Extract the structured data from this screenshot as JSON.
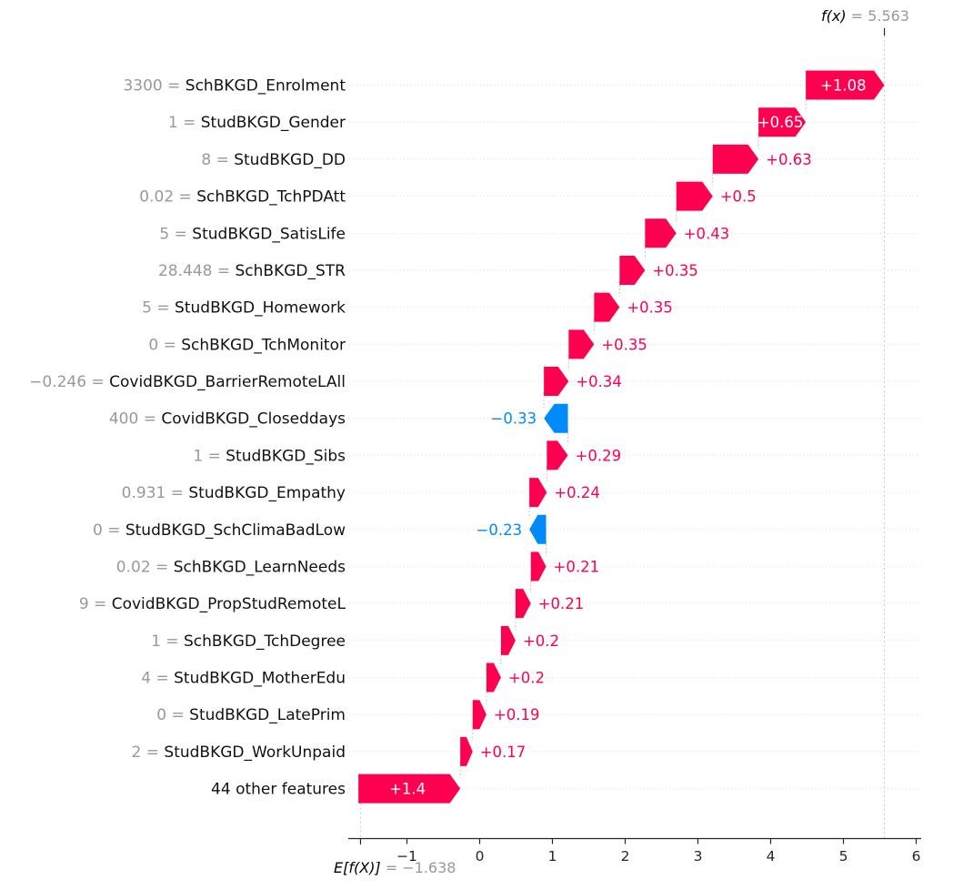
{
  "annotations": {
    "fx_name": "f(x)",
    "fx_eq": " = 5.563",
    "efx_name": "E[f(X)]",
    "efx_eq": " = −1.638"
  },
  "colors": {
    "positive": "#ff0051",
    "negative": "#008bfb",
    "inside_label": "#ffffff",
    "value_gray": "#999999",
    "feature_black": "#111111",
    "tick": "#262626",
    "gridline": "#dcdcdc",
    "connector": "#c0c0c0",
    "guide": "#cccccc"
  },
  "chart_data": {
    "type": "bar",
    "subtype": "shap-waterfall",
    "fx": 5.563,
    "base_value": -1.638,
    "xlim": [
      -1.79,
      6.05
    ],
    "x_ticks": [
      -1,
      0,
      1,
      2,
      3,
      4,
      5,
      6
    ],
    "x_tick_labels": [
      "−1",
      "0",
      "1",
      "2",
      "3",
      "4",
      "5",
      "6"
    ],
    "rows": [
      {
        "data_value": "3300",
        "feature": "SchBKGD_Enrolment",
        "shap": 1.08,
        "label": "+1.08",
        "start": 4.483,
        "end": 5.563,
        "inside": true
      },
      {
        "data_value": "1",
        "feature": "StudBKGD_Gender",
        "shap": 0.65,
        "label": "+0.65",
        "start": 3.833,
        "end": 4.483,
        "inside": true
      },
      {
        "data_value": "8",
        "feature": "StudBKGD_DD",
        "shap": 0.63,
        "label": "+0.63",
        "start": 3.203,
        "end": 3.833,
        "inside": false
      },
      {
        "data_value": "0.02",
        "feature": "SchBKGD_TchPDAtt",
        "shap": 0.5,
        "label": "+0.5",
        "start": 2.703,
        "end": 3.203,
        "inside": false
      },
      {
        "data_value": "5",
        "feature": "StudBKGD_SatisLife",
        "shap": 0.43,
        "label": "+0.43",
        "start": 2.273,
        "end": 2.703,
        "inside": false
      },
      {
        "data_value": "28.448",
        "feature": "SchBKGD_STR",
        "shap": 0.35,
        "label": "+0.35",
        "start": 1.923,
        "end": 2.273,
        "inside": false
      },
      {
        "data_value": "5",
        "feature": "StudBKGD_Homework",
        "shap": 0.35,
        "label": "+0.35",
        "start": 1.573,
        "end": 1.923,
        "inside": false
      },
      {
        "data_value": "0",
        "feature": "SchBKGD_TchMonitor",
        "shap": 0.35,
        "label": "+0.35",
        "start": 1.223,
        "end": 1.573,
        "inside": false
      },
      {
        "data_value": "−0.246",
        "feature": "CovidBKGD_BarrierRemoteLAll",
        "shap": 0.34,
        "label": "+0.34",
        "start": 0.883,
        "end": 1.223,
        "inside": false
      },
      {
        "data_value": "400",
        "feature": "CovidBKGD_Closeddays",
        "shap": -0.33,
        "label": "−0.33",
        "start": 0.883,
        "end": 1.213,
        "inside": false
      },
      {
        "data_value": "1",
        "feature": "StudBKGD_Sibs",
        "shap": 0.29,
        "label": "+0.29",
        "start": 0.923,
        "end": 1.213,
        "inside": false
      },
      {
        "data_value": "0.931",
        "feature": "StudBKGD_Empathy",
        "shap": 0.24,
        "label": "+0.24",
        "start": 0.683,
        "end": 0.923,
        "inside": false
      },
      {
        "data_value": "0",
        "feature": "StudBKGD_SchClimaBadLow",
        "shap": -0.23,
        "label": "−0.23",
        "start": 0.683,
        "end": 0.913,
        "inside": false
      },
      {
        "data_value": "0.02",
        "feature": "SchBKGD_LearnNeeds",
        "shap": 0.21,
        "label": "+0.21",
        "start": 0.703,
        "end": 0.913,
        "inside": false
      },
      {
        "data_value": "9",
        "feature": "CovidBKGD_PropStudRemoteL",
        "shap": 0.21,
        "label": "+0.21",
        "start": 0.493,
        "end": 0.703,
        "inside": false
      },
      {
        "data_value": "1",
        "feature": "SchBKGD_TchDegree",
        "shap": 0.2,
        "label": "+0.2",
        "start": 0.293,
        "end": 0.493,
        "inside": false
      },
      {
        "data_value": "4",
        "feature": "StudBKGD_MotherEdu",
        "shap": 0.2,
        "label": "+0.2",
        "start": 0.093,
        "end": 0.293,
        "inside": false
      },
      {
        "data_value": "0",
        "feature": "StudBKGD_LatePrim",
        "shap": 0.19,
        "label": "+0.19",
        "start": -0.097,
        "end": 0.093,
        "inside": false
      },
      {
        "data_value": "2",
        "feature": "StudBKGD_WorkUnpaid",
        "shap": 0.17,
        "label": "+0.17",
        "start": -0.267,
        "end": -0.097,
        "inside": false
      },
      {
        "data_value": "",
        "feature": "44 other features",
        "shap": 1.4,
        "label": "+1.4",
        "start": -1.667,
        "end": -0.267,
        "inside": true
      }
    ]
  }
}
